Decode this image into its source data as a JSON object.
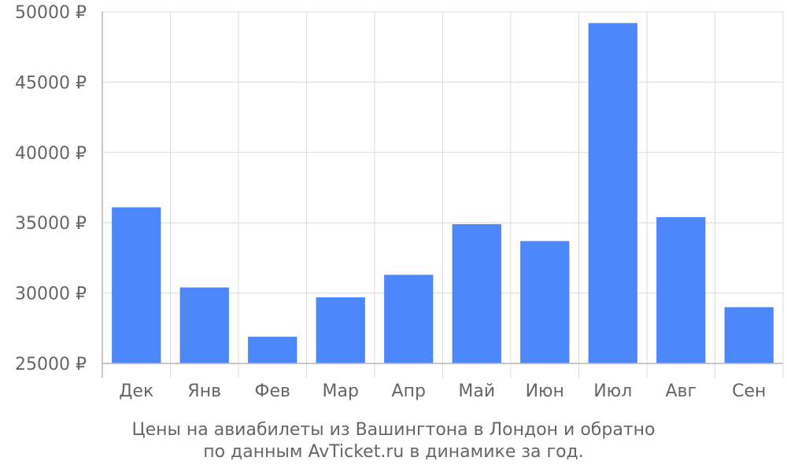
{
  "chart_data": {
    "type": "bar",
    "categories": [
      "Дек",
      "Янв",
      "Фев",
      "Мар",
      "Апр",
      "Май",
      "Июн",
      "Июл",
      "Авг",
      "Сен"
    ],
    "values": [
      36100,
      30400,
      26900,
      29700,
      31300,
      34900,
      33700,
      49200,
      35400,
      29000
    ],
    "ylim": [
      25000,
      50000
    ],
    "yticks": [
      25000,
      30000,
      35000,
      40000,
      45000,
      50000
    ],
    "ytick_suffix": " ₽",
    "grid": true,
    "bar_color": "#4d88fb",
    "grid_color": "#dcdcdc",
    "axis_color": "#b5b5b5"
  },
  "caption": {
    "line1": "Цены на авиабилеты из Вашингтона в Лондон и обратно",
    "line2": "по данным AvTicket.ru в динамике за год."
  }
}
